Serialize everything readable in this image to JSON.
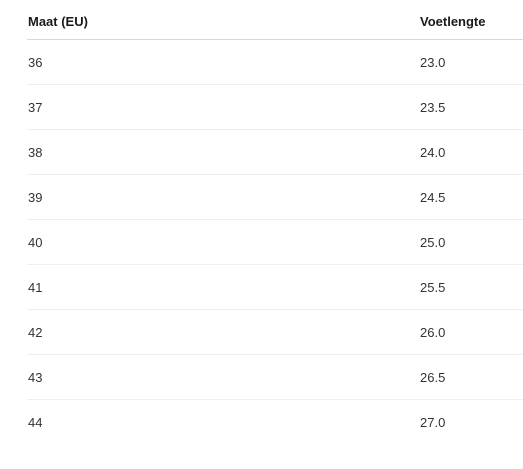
{
  "table": {
    "columns": [
      "Maat (EU)",
      "Voetlengte"
    ],
    "rows": [
      [
        "36",
        "23.0"
      ],
      [
        "37",
        "23.5"
      ],
      [
        "38",
        "24.0"
      ],
      [
        "39",
        "24.5"
      ],
      [
        "40",
        "25.0"
      ],
      [
        "41",
        "25.5"
      ],
      [
        "42",
        "26.0"
      ],
      [
        "43",
        "26.5"
      ],
      [
        "44",
        "27.0"
      ]
    ]
  }
}
